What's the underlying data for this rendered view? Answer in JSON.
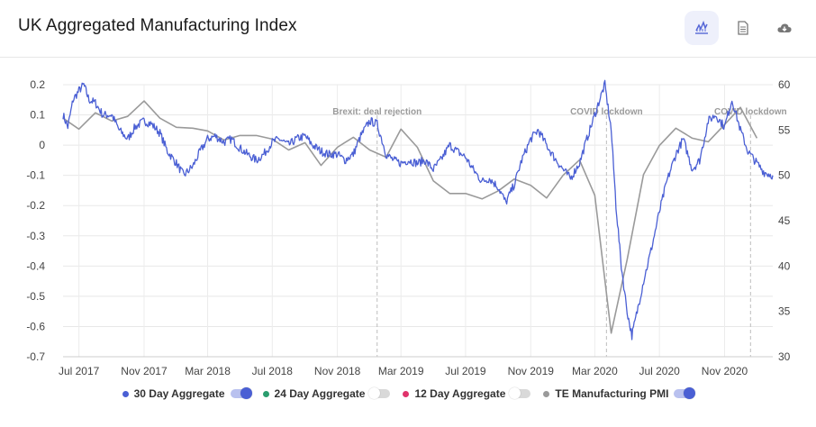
{
  "header": {
    "title": "UK Aggregated Manufacturing Index"
  },
  "toolbar": {
    "items": [
      {
        "icon": "line-chart-icon",
        "active": true
      },
      {
        "icon": "document-icon",
        "active": false
      },
      {
        "icon": "cloud-download-icon",
        "active": false
      }
    ]
  },
  "colors": {
    "accent": "#5566d6",
    "series_30": "#4a5fd4",
    "series_24": "#2a9d6e",
    "series_12": "#e0336b",
    "series_pmi": "#9a9a9a"
  },
  "legend": [
    {
      "label": "30 Day Aggregate",
      "color": "#4a5fd4",
      "toggle_on": true
    },
    {
      "label": "24 Day Aggregate",
      "color": "#2a9d6e",
      "toggle_on": false
    },
    {
      "label": "12 Day Aggregate",
      "color": "#e0336b",
      "toggle_on": false
    },
    {
      "label": "TE Manufacturing PMI",
      "color": "#9a9a9a",
      "toggle_on": true
    }
  ],
  "chart_data": {
    "type": "line",
    "title": "UK Aggregated Manufacturing Index",
    "x_range": [
      "2017-06-01",
      "2021-01-31"
    ],
    "x_ticks": [
      {
        "label": "Jul 2017",
        "date": "2017-07-01"
      },
      {
        "label": "Nov 2017",
        "date": "2017-11-01"
      },
      {
        "label": "Mar 2018",
        "date": "2018-03-01"
      },
      {
        "label": "Jul 2018",
        "date": "2018-07-01"
      },
      {
        "label": "Nov 2018",
        "date": "2018-11-01"
      },
      {
        "label": "Mar 2019",
        "date": "2019-03-01"
      },
      {
        "label": "Jul 2019",
        "date": "2019-07-01"
      },
      {
        "label": "Nov 2019",
        "date": "2019-11-01"
      },
      {
        "label": "Mar 2020",
        "date": "2020-03-01"
      },
      {
        "label": "Jul 2020",
        "date": "2020-07-01"
      },
      {
        "label": "Nov 2020",
        "date": "2020-11-01"
      }
    ],
    "y_left": {
      "min": -0.7,
      "max": 0.2,
      "ticks": [
        "0.2",
        "0.1",
        "0",
        "-0.1",
        "-0.2",
        "-0.3",
        "-0.4",
        "-0.5",
        "-0.6",
        "-0.7"
      ]
    },
    "y_right": {
      "min": 30,
      "max": 60,
      "ticks": [
        "60",
        "55",
        "50",
        "45",
        "40",
        "35",
        "30"
      ]
    },
    "grid": true,
    "annotations": [
      {
        "label": "Brexit: deal rejection",
        "date": "2019-01-15"
      },
      {
        "label": "COVID lockdown",
        "date": "2020-03-23"
      },
      {
        "label": "COVID lockdown",
        "date": "2020-12-20"
      }
    ],
    "series": [
      {
        "name": "30 Day Aggregate",
        "axis": "left",
        "points": [
          [
            "2017-06-01",
            0.1
          ],
          [
            "2017-06-10",
            0.06
          ],
          [
            "2017-06-20",
            0.15
          ],
          [
            "2017-07-01",
            0.18
          ],
          [
            "2017-07-10",
            0.2
          ],
          [
            "2017-07-20",
            0.15
          ],
          [
            "2017-08-01",
            0.14
          ],
          [
            "2017-08-15",
            0.1
          ],
          [
            "2017-09-01",
            0.1
          ],
          [
            "2017-09-15",
            0.05
          ],
          [
            "2017-10-01",
            0.02
          ],
          [
            "2017-10-15",
            0.06
          ],
          [
            "2017-11-01",
            0.08
          ],
          [
            "2017-11-15",
            0.07
          ],
          [
            "2017-12-01",
            0.04
          ],
          [
            "2017-12-15",
            -0.02
          ],
          [
            "2018-01-01",
            -0.06
          ],
          [
            "2018-01-15",
            -0.1
          ],
          [
            "2018-02-01",
            -0.07
          ],
          [
            "2018-02-15",
            -0.02
          ],
          [
            "2018-03-01",
            0.02
          ],
          [
            "2018-03-15",
            0.03
          ],
          [
            "2018-04-01",
            0.01
          ],
          [
            "2018-04-15",
            0.02
          ],
          [
            "2018-05-01",
            -0.01
          ],
          [
            "2018-05-15",
            -0.03
          ],
          [
            "2018-06-01",
            -0.05
          ],
          [
            "2018-06-15",
            -0.03
          ],
          [
            "2018-07-01",
            0.01
          ],
          [
            "2018-07-15",
            0.02
          ],
          [
            "2018-08-01",
            0.0
          ],
          [
            "2018-08-15",
            0.02
          ],
          [
            "2018-09-01",
            0.03
          ],
          [
            "2018-09-15",
            0.0
          ],
          [
            "2018-10-01",
            -0.02
          ],
          [
            "2018-10-15",
            -0.03
          ],
          [
            "2018-11-01",
            -0.03
          ],
          [
            "2018-11-15",
            -0.05
          ],
          [
            "2018-12-01",
            -0.03
          ],
          [
            "2018-12-15",
            0.03
          ],
          [
            "2019-01-01",
            0.08
          ],
          [
            "2019-01-15",
            0.07
          ],
          [
            "2019-02-01",
            -0.03
          ],
          [
            "2019-02-15",
            -0.05
          ],
          [
            "2019-03-01",
            -0.06
          ],
          [
            "2019-03-15",
            -0.05
          ],
          [
            "2019-04-01",
            -0.06
          ],
          [
            "2019-04-15",
            -0.05
          ],
          [
            "2019-05-01",
            -0.08
          ],
          [
            "2019-05-15",
            -0.05
          ],
          [
            "2019-06-01",
            0.0
          ],
          [
            "2019-06-15",
            -0.02
          ],
          [
            "2019-07-01",
            -0.04
          ],
          [
            "2019-07-15",
            -0.08
          ],
          [
            "2019-08-01",
            -0.12
          ],
          [
            "2019-08-15",
            -0.11
          ],
          [
            "2019-09-01",
            -0.14
          ],
          [
            "2019-09-15",
            -0.19
          ],
          [
            "2019-10-01",
            -0.13
          ],
          [
            "2019-10-15",
            -0.05
          ],
          [
            "2019-11-01",
            0.02
          ],
          [
            "2019-11-15",
            0.05
          ],
          [
            "2019-12-01",
            0.0
          ],
          [
            "2019-12-15",
            -0.04
          ],
          [
            "2020-01-01",
            -0.08
          ],
          [
            "2020-01-15",
            -0.11
          ],
          [
            "2020-02-01",
            -0.06
          ],
          [
            "2020-02-15",
            0.02
          ],
          [
            "2020-03-01",
            0.1
          ],
          [
            "2020-03-10",
            0.15
          ],
          [
            "2020-03-20",
            0.2
          ],
          [
            "2020-04-01",
            0.05
          ],
          [
            "2020-04-10",
            -0.2
          ],
          [
            "2020-04-20",
            -0.4
          ],
          [
            "2020-05-01",
            -0.55
          ],
          [
            "2020-05-10",
            -0.63
          ],
          [
            "2020-05-20",
            -0.55
          ],
          [
            "2020-06-01",
            -0.45
          ],
          [
            "2020-06-15",
            -0.35
          ],
          [
            "2020-07-01",
            -0.22
          ],
          [
            "2020-07-15",
            -0.12
          ],
          [
            "2020-08-01",
            -0.03
          ],
          [
            "2020-08-15",
            0.02
          ],
          [
            "2020-09-01",
            -0.08
          ],
          [
            "2020-09-15",
            -0.05
          ],
          [
            "2020-10-01",
            0.08
          ],
          [
            "2020-10-15",
            0.1
          ],
          [
            "2020-11-01",
            0.06
          ],
          [
            "2020-11-15",
            0.15
          ],
          [
            "2020-12-01",
            0.05
          ],
          [
            "2020-12-15",
            -0.02
          ],
          [
            "2021-01-01",
            -0.06
          ],
          [
            "2021-01-15",
            -0.09
          ],
          [
            "2021-01-31",
            -0.1
          ]
        ]
      },
      {
        "name": "TE Manufacturing PMI",
        "axis": "right",
        "points": [
          [
            "2017-06-01",
            56.3
          ],
          [
            "2017-07-01",
            55.1
          ],
          [
            "2017-08-01",
            56.9
          ],
          [
            "2017-09-01",
            56.0
          ],
          [
            "2017-10-01",
            56.5
          ],
          [
            "2017-11-01",
            58.2
          ],
          [
            "2017-12-01",
            56.3
          ],
          [
            "2018-01-01",
            55.3
          ],
          [
            "2018-02-01",
            55.2
          ],
          [
            "2018-03-01",
            54.9
          ],
          [
            "2018-04-01",
            53.9
          ],
          [
            "2018-05-01",
            54.4
          ],
          [
            "2018-06-01",
            54.4
          ],
          [
            "2018-07-01",
            54.0
          ],
          [
            "2018-08-01",
            52.8
          ],
          [
            "2018-09-01",
            53.6
          ],
          [
            "2018-10-01",
            51.1
          ],
          [
            "2018-11-01",
            53.1
          ],
          [
            "2018-12-01",
            54.2
          ],
          [
            "2019-01-01",
            52.8
          ],
          [
            "2019-02-01",
            52.0
          ],
          [
            "2019-03-01",
            55.1
          ],
          [
            "2019-04-01",
            53.1
          ],
          [
            "2019-05-01",
            49.4
          ],
          [
            "2019-06-01",
            48.0
          ],
          [
            "2019-07-01",
            48.0
          ],
          [
            "2019-08-01",
            47.4
          ],
          [
            "2019-09-01",
            48.3
          ],
          [
            "2019-10-01",
            49.6
          ],
          [
            "2019-11-01",
            48.9
          ],
          [
            "2019-12-01",
            47.5
          ],
          [
            "2020-01-01",
            50.0
          ],
          [
            "2020-02-01",
            51.7
          ],
          [
            "2020-03-01",
            47.8
          ],
          [
            "2020-04-01",
            32.6
          ],
          [
            "2020-05-01",
            40.7
          ],
          [
            "2020-06-01",
            50.1
          ],
          [
            "2020-07-01",
            53.3
          ],
          [
            "2020-08-01",
            55.2
          ],
          [
            "2020-09-01",
            54.1
          ],
          [
            "2020-10-01",
            53.7
          ],
          [
            "2020-11-01",
            55.6
          ],
          [
            "2020-12-01",
            57.5
          ],
          [
            "2021-01-01",
            54.1
          ]
        ]
      }
    ]
  }
}
